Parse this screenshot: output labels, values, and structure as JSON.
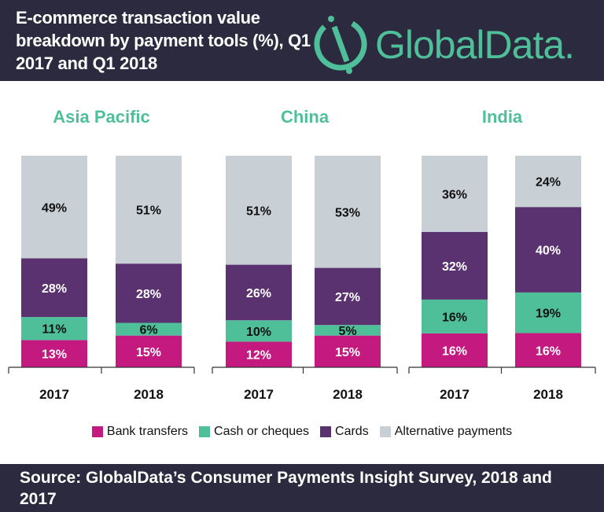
{
  "header": {
    "title": "E-commerce transaction value breakdown by payment tools (%), Q1 2017 and Q1 2018",
    "logo_text": "GlobalData."
  },
  "footer": {
    "source": "Source: GlobalData’s Consumer Payments Insight Survey, 2018 and 2017"
  },
  "colors": {
    "header_bg": "#2b2a3e",
    "region_title": "#4fbf9a",
    "Bank transfers": "#c4197f",
    "Cash or cheques": "#4fbf9a",
    "Cards": "#5a3270",
    "Alternative payments": "#c8cfd5"
  },
  "chart_data": [
    {
      "type": "bar",
      "stacked": true,
      "title": "Asia Pacific",
      "categories": [
        "2017",
        "2018"
      ],
      "unit": "%",
      "series": [
        {
          "name": "Bank transfers",
          "values": [
            13,
            15
          ]
        },
        {
          "name": "Cash or cheques",
          "values": [
            11,
            6
          ]
        },
        {
          "name": "Cards",
          "values": [
            28,
            28
          ]
        },
        {
          "name": "Alternative payments",
          "values": [
            49,
            51
          ]
        }
      ]
    },
    {
      "type": "bar",
      "stacked": true,
      "title": "China",
      "categories": [
        "2017",
        "2018"
      ],
      "unit": "%",
      "series": [
        {
          "name": "Bank transfers",
          "values": [
            12,
            15
          ]
        },
        {
          "name": "Cash or cheques",
          "values": [
            10,
            5
          ]
        },
        {
          "name": "Cards",
          "values": [
            26,
            27
          ]
        },
        {
          "name": "Alternative payments",
          "values": [
            51,
            53
          ]
        }
      ]
    },
    {
      "type": "bar",
      "stacked": true,
      "title": "India",
      "categories": [
        "2017",
        "2018"
      ],
      "unit": "%",
      "series": [
        {
          "name": "Bank transfers",
          "values": [
            16,
            16
          ]
        },
        {
          "name": "Cash or cheques",
          "values": [
            16,
            19
          ]
        },
        {
          "name": "Cards",
          "values": [
            32,
            40
          ]
        },
        {
          "name": "Alternative payments",
          "values": [
            36,
            24
          ]
        }
      ]
    }
  ],
  "legend": [
    "Bank transfers",
    "Cash or cheques",
    "Cards",
    "Alternative payments"
  ]
}
